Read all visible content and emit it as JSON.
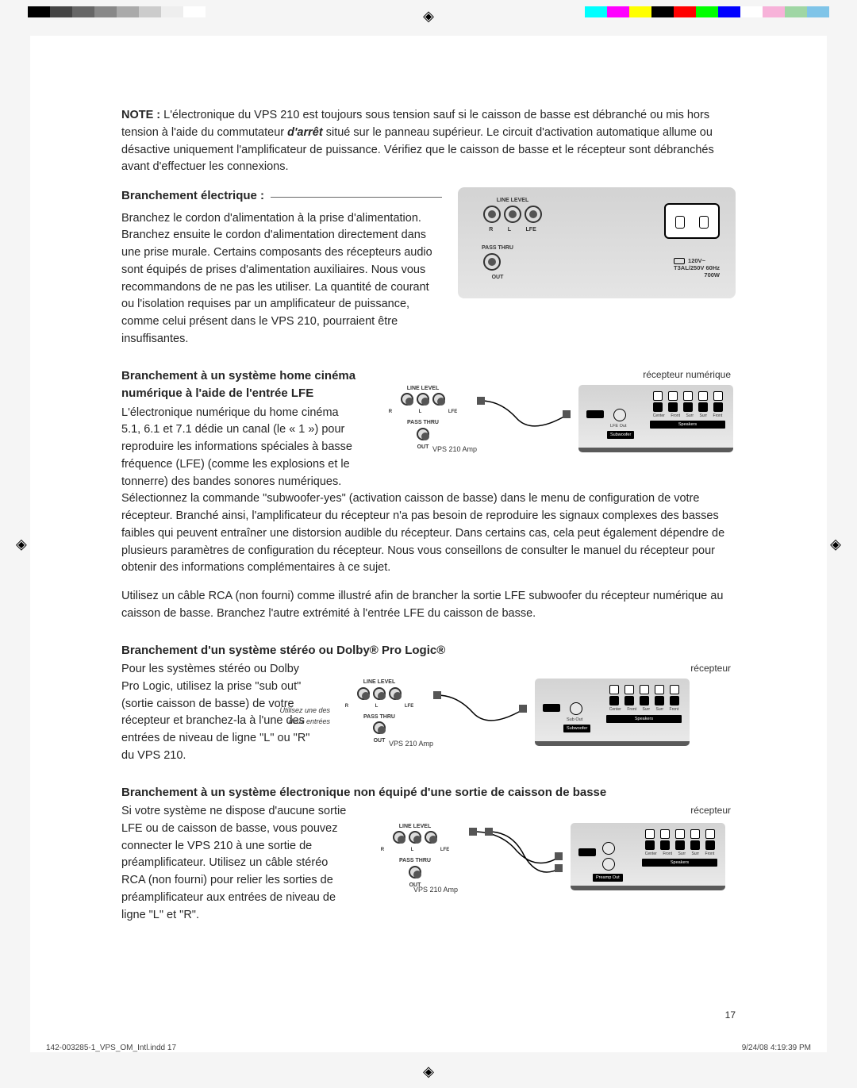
{
  "crop_colors_left": [
    "#000000",
    "#444444",
    "#666666",
    "#888888",
    "#aaaaaa",
    "#cccccc",
    "#eeeeee",
    "#ffffff"
  ],
  "crop_colors_right": [
    "#00ffff",
    "#ff00ff",
    "#ffff00",
    "#000000",
    "#ff0000",
    "#00ff00",
    "#0000ff",
    "#ffffff",
    "#f7b2d9",
    "#9fd6a4",
    "#7fc4e8"
  ],
  "note": {
    "label": "NOTE :",
    "text_a": " L'électronique du VPS 210 est toujours sous tension sauf si le caisson de basse est débranché ou mis hors tension à l'aide du commutateur ",
    "italic": "d'arrêt",
    "text_b": " situé sur le panneau supérieur. Le circuit d'activation automatique allume ou désactive uniquement l'amplificateur de puissance. Vérifiez que le caisson de basse et le récepteur sont débranchés avant d'effectuer les connexions."
  },
  "sec1": {
    "heading": "Branchement électrique :",
    "body": "Branchez le cordon d'alimentation à la prise d'alimentation. Branchez ensuite le cordon d'alimentation directement dans une prise murale. Certains composants des récepteurs audio sont équipés de prises d'alimentation auxiliaires. Nous vous recommandons de ne pas les utiliser. La quantité de courant ou l'isolation requises par un amplificateur de puissance, comme celui présent dans le VPS 210, pourraient être insuffisantes.",
    "panel_labels": {
      "line_level": "LINE LEVEL",
      "r": "R",
      "l": "L",
      "lfe": "LFE",
      "pass_thru": "PASS THRU",
      "out": "OUT",
      "voltage_1": "120V~",
      "voltage_2": "T3AL/250V  60Hz",
      "voltage_3": "700W"
    }
  },
  "sec2": {
    "heading": "Branchement à un système home cinéma numérique à l'aide de l'entrée LFE",
    "body1": "L'électronique numérique du home cinéma 5.1, 6.1 et 7.1 dédie un canal (le « 1 ») pour reproduire les informations spéciales à basse fréquence (LFE) (comme les explosions et le tonnerre) des bandes sonores numériques.",
    "body2": "Sélectionnez la commande \"subwoofer-yes\" (activation caisson de basse) dans le menu de configuration de votre récepteur. Branché ainsi, l'amplificateur du récepteur n'a pas besoin de reproduire les signaux complexes des basses faibles qui peuvent entraîner une distorsion audible du récepteur. Dans certains cas, cela peut également dépendre de plusieurs paramètres de configuration du récepteur. Nous vous conseillons de consulter le manuel du récepteur pour obtenir des informations complémentaires à ce sujet.",
    "body3": "Utilisez un câble RCA (non fourni) comme illustré afin de brancher la sortie LFE subwoofer du récepteur numérique au caisson de basse. Branchez l'autre extrémité à l'entrée LFE du caisson de basse.",
    "recv_label": "récepteur numérique",
    "amp_label": "VPS 210 Amp",
    "lfe_out": "LFE Out",
    "subwoofer": "Subwoofer",
    "speakers": "Speakers",
    "term_labels": [
      "Center",
      "Front",
      "Surr",
      "Surr",
      "Front"
    ]
  },
  "sec3": {
    "heading": "Branchement d'un système stéréo ou Dolby® Pro Logic®",
    "body": "Pour les systèmes stéréo ou Dolby Pro Logic, utilisez la prise \"sub out\" (sortie caisson de basse) de votre récepteur et branchez-la à l'une des entrées de niveau de ligne \"L\" ou \"R\" du VPS 210.",
    "recv_label": "récepteur",
    "amp_label": "VPS 210 Amp",
    "hint": "Utilisez une des deux entrées",
    "sub_out": "Sub Out",
    "subwoofer": "Subwoofer",
    "speakers": "Speakers"
  },
  "sec4": {
    "heading": "Branchement à un système électronique non équipé d'une sortie de caisson de basse",
    "body": "Si votre système ne dispose d'aucune sortie LFE ou de caisson de basse, vous pouvez connecter le VPS 210 à une sortie de préamplificateur. Utilisez un câble stéréo RCA (non fourni) pour relier les sorties de préamplificateur aux entrées de niveau de ligne \"L\" et \"R\".",
    "recv_label": "récepteur",
    "amp_label": "VPS 210 Amp",
    "preamp_out": "Preamp Out",
    "speakers": "Speakers"
  },
  "page_number": "17",
  "footer_left": "142-003285-1_VPS_OM_Intl.indd   17",
  "footer_right": "9/24/08   4:19:39 PM",
  "reg_glyph": "◈"
}
